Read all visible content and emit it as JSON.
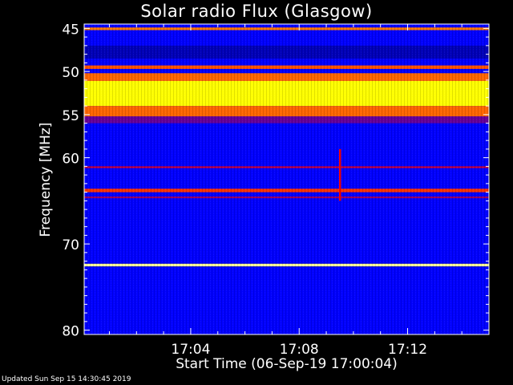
{
  "chart_data": {
    "type": "heatmap",
    "title": "Solar radio Flux (Glasgow)",
    "xlabel": "Start Time (06-Sep-19 17:00:04)",
    "ylabel": "Frequency [MHz]",
    "footer": "Updated Sun Sep 15 14:30:45 2019",
    "x_start": "17:00:04",
    "xlim_minutes": [
      0.07,
      15.0
    ],
    "x_ticks": [
      {
        "minute": 4,
        "label": "17:04"
      },
      {
        "minute": 8,
        "label": "17:08"
      },
      {
        "minute": 12,
        "label": "17:12"
      }
    ],
    "ylim": [
      44.5,
      80.5
    ],
    "y_ticks": [
      {
        "value": 45,
        "label": "45"
      },
      {
        "value": 50,
        "label": "50"
      },
      {
        "value": 55,
        "label": "55"
      },
      {
        "value": 60,
        "label": "60"
      },
      {
        "value": 70,
        "label": "70"
      },
      {
        "value": 80,
        "label": "80"
      }
    ],
    "background_intensity": 0.25,
    "bands": [
      {
        "from": 44.9,
        "to": 45.2,
        "intensity": 0.62
      },
      {
        "from": 47.0,
        "to": 48.5,
        "intensity": 0.18
      },
      {
        "from": 49.3,
        "to": 49.7,
        "intensity": 0.58
      },
      {
        "from": 50.2,
        "to": 51.1,
        "intensity": 0.6
      },
      {
        "from": 51.1,
        "to": 54.0,
        "intensity": 0.75
      },
      {
        "from": 54.0,
        "to": 55.2,
        "intensity": 0.6
      },
      {
        "from": 55.2,
        "to": 56.0,
        "intensity": 0.35
      },
      {
        "from": 61.0,
        "to": 61.2,
        "intensity": 0.45
      },
      {
        "from": 63.6,
        "to": 64.0,
        "intensity": 0.55
      },
      {
        "from": 64.5,
        "to": 64.7,
        "intensity": 0.4
      },
      {
        "from": 72.3,
        "to": 72.6,
        "intensity": 0.82
      },
      {
        "from": 72.4,
        "to": 72.5,
        "intensity": 1.0
      }
    ],
    "burst": {
      "minute": 9.5,
      "from": 59.0,
      "to": 65.0,
      "intensity": 0.5
    },
    "colorscale": [
      "#000000",
      "#0000ff",
      "#ff0000",
      "#ffff00",
      "#ffffff"
    ]
  }
}
